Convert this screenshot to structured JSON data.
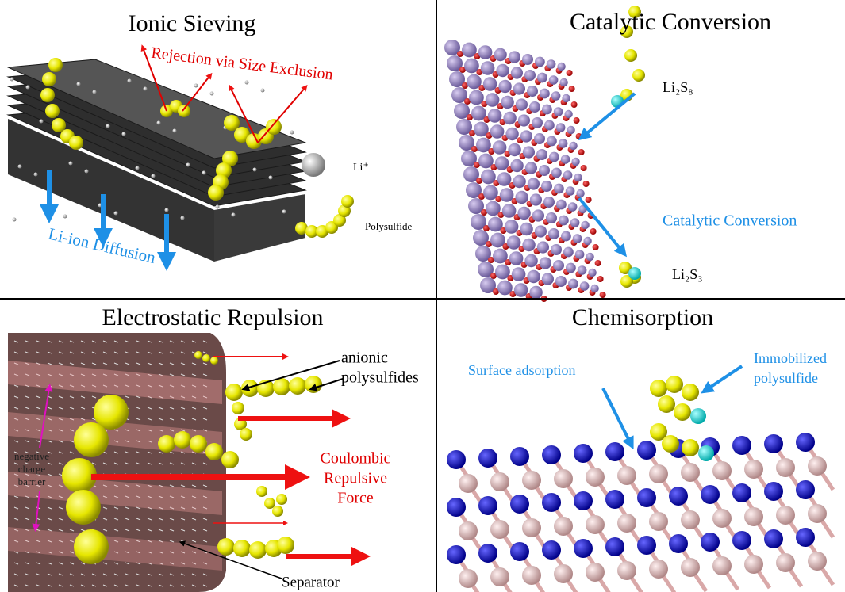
{
  "ionic_sieving": {
    "title": "Ionic Sieving",
    "rejection": "Rejection via Size Exclusion",
    "li_ion": "Li⁺",
    "polysulfide": "Polysulfide",
    "diffusion": "Li-ion Diffusion"
  },
  "catalytic_conversion": {
    "title": "Catalytic Conversion",
    "li2s8": "Li₂S₈",
    "label": "Catalytic Conversion",
    "li2s3": "Li₂S₃"
  },
  "electrostatic_repulsion": {
    "title": "Electrostatic Repulsion",
    "anionic": [
      "anionic",
      "polysulfides"
    ],
    "barrier": [
      "negative",
      "charge",
      "barrier"
    ],
    "force": [
      "Coulombic",
      "Repulsive",
      "Force"
    ],
    "separator": "Separator"
  },
  "chemisorption": {
    "title": "Chemisorption",
    "surface": "Surface adsorption",
    "immobilized": [
      "Immobilized",
      "polysulfide"
    ]
  }
}
